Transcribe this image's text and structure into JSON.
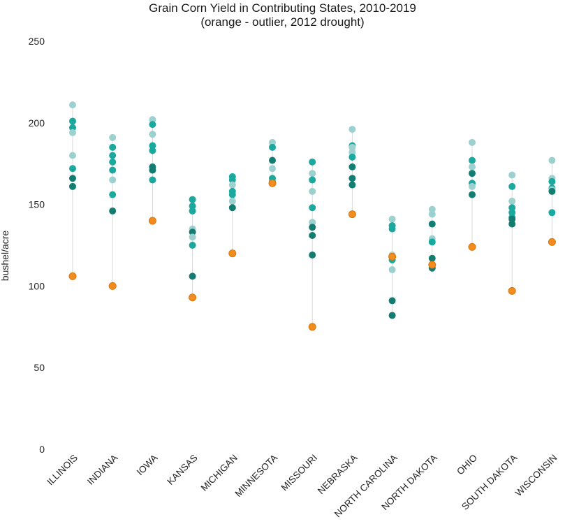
{
  "chart_data": {
    "type": "scatter",
    "title": "Grain Corn Yield in Contributing States, 2010-2019",
    "subtitle": "(orange - outlier, 2012 drought)",
    "xlabel": "",
    "ylabel": "bushel/acre",
    "ylim": [
      0,
      250
    ],
    "yticks": [
      0,
      50,
      100,
      150,
      200,
      250
    ],
    "grid": false,
    "colors": {
      "light": "#9dd1cf",
      "teal": "#1aa89f",
      "dark": "#137d72",
      "outlier": "#f28c1c",
      "outlier_stroke": "#d9760f",
      "stem": "#d9d9d9"
    },
    "categories": [
      "ILLINOIS",
      "INDIANA",
      "IOWA",
      "KANSAS",
      "MICHIGAN",
      "MINNESOTA",
      "MISSOURI",
      "NEBRASKA",
      "NORTH CAROLINA",
      "NORTH DAKOTA",
      "OHIO",
      "SOUTH DAKOTA",
      "WISCONSIN"
    ],
    "series": [
      {
        "state": "ILLINOIS",
        "values": [
          211,
          201,
          197,
          194,
          180,
          172,
          166,
          161
        ],
        "shades": [
          "light",
          "teal",
          "teal",
          "light",
          "light",
          "teal",
          "dark",
          "dark"
        ],
        "outlier": 106
      },
      {
        "state": "INDIANA",
        "values": [
          191,
          185,
          180,
          176,
          171,
          165,
          156,
          146
        ],
        "shades": [
          "light",
          "teal",
          "teal",
          "teal",
          "teal",
          "light",
          "teal",
          "dark"
        ],
        "outlier": 100
      },
      {
        "state": "IOWA",
        "values": [
          202,
          199,
          193,
          186,
          183,
          173,
          171,
          165
        ],
        "shades": [
          "light",
          "teal",
          "light",
          "teal",
          "teal",
          "dark",
          "dark",
          "teal"
        ],
        "outlier": 140
      },
      {
        "state": "KANSAS",
        "values": [
          153,
          149,
          146,
          135,
          133,
          130,
          125,
          106
        ],
        "shades": [
          "teal",
          "teal",
          "teal",
          "light",
          "dark",
          "light",
          "teal",
          "dark"
        ],
        "outlier": 93
      },
      {
        "state": "MICHIGAN",
        "values": [
          167,
          165,
          162,
          158,
          156,
          152,
          148
        ],
        "shades": [
          "teal",
          "teal",
          "light",
          "teal",
          "teal",
          "light",
          "dark"
        ],
        "outlier": 120
      },
      {
        "state": "MINNESOTA",
        "values": [
          188,
          185,
          177,
          172,
          166,
          164
        ],
        "shades": [
          "light",
          "teal",
          "dark",
          "light",
          "teal",
          "teal"
        ],
        "outlier": 163
      },
      {
        "state": "MISSOURI",
        "values": [
          176,
          169,
          165,
          158,
          148,
          139,
          136,
          131,
          119
        ],
        "shades": [
          "teal",
          "light",
          "teal",
          "light",
          "teal",
          "light",
          "dark",
          "dark",
          "dark"
        ],
        "outlier": 75
      },
      {
        "state": "NEBRASKA",
        "values": [
          196,
          186,
          185,
          182,
          179,
          173,
          166,
          162
        ],
        "shades": [
          "light",
          "teal",
          "light",
          "light",
          "teal",
          "dark",
          "dark",
          "dark"
        ],
        "outlier": 144
      },
      {
        "state": "NORTH CAROLINA",
        "values": [
          141,
          137,
          135,
          119,
          116,
          110,
          91,
          82
        ],
        "shades": [
          "light",
          "teal",
          "teal",
          "light",
          "teal",
          "light",
          "dark",
          "dark"
        ],
        "outlier": 118
      },
      {
        "state": "NORTH DAKOTA",
        "values": [
          147,
          144,
          138,
          129,
          127,
          117,
          113,
          111
        ],
        "shades": [
          "light",
          "light",
          "dark",
          "light",
          "teal",
          "dark",
          "dark",
          "dark"
        ],
        "outlier": 113
      },
      {
        "state": "OHIO",
        "values": [
          188,
          177,
          173,
          169,
          163,
          161,
          156
        ],
        "shades": [
          "light",
          "teal",
          "light",
          "dark",
          "teal",
          "light",
          "dark"
        ],
        "outlier": 124
      },
      {
        "state": "SOUTH DAKOTA",
        "values": [
          168,
          161,
          152,
          148,
          145,
          142,
          141,
          138
        ],
        "shades": [
          "light",
          "teal",
          "light",
          "teal",
          "teal",
          "teal",
          "dark",
          "dark"
        ],
        "outlier": 97
      },
      {
        "state": "WISCONSIN",
        "values": [
          177,
          166,
          164,
          160,
          159,
          158,
          145
        ],
        "shades": [
          "light",
          "light",
          "teal",
          "teal",
          "light",
          "dark",
          "teal"
        ],
        "outlier": 127
      }
    ]
  }
}
